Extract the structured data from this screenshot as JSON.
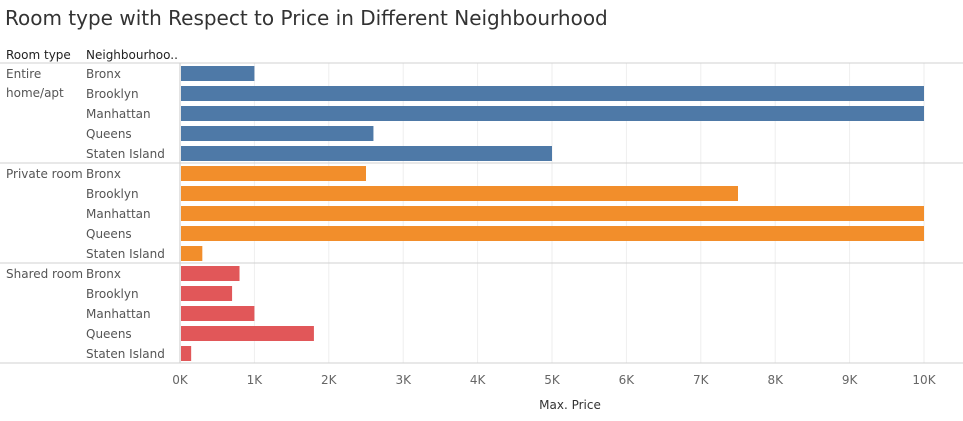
{
  "title": "Room type with Respect to Price in Different Neighbourhood",
  "headers": {
    "room_type": "Room type",
    "neighbourhood": "Neighbourhoo.."
  },
  "chart_data": {
    "type": "bar",
    "orientation": "horizontal",
    "xlabel": "Max. Price",
    "xlim": [
      0,
      10000
    ],
    "x_ticks": [
      0,
      1000,
      2000,
      3000,
      4000,
      5000,
      6000,
      7000,
      8000,
      9000,
      10000
    ],
    "x_tick_labels": [
      "0K",
      "1K",
      "2K",
      "3K",
      "4K",
      "5K",
      "6K",
      "7K",
      "8K",
      "9K",
      "10K"
    ],
    "grid": true,
    "groups": [
      {
        "name": "Entire home/apt",
        "color": "#4e79a7",
        "categories": [
          "Bronx",
          "Brooklyn",
          "Manhattan",
          "Queens",
          "Staten Island"
        ],
        "values": [
          1000,
          10000,
          10000,
          2600,
          5000
        ]
      },
      {
        "name": "Private room",
        "color": "#f28e2b",
        "categories": [
          "Bronx",
          "Brooklyn",
          "Manhattan",
          "Queens",
          "Staten Island"
        ],
        "values": [
          2500,
          7500,
          10000,
          10000,
          300
        ]
      },
      {
        "name": "Shared room",
        "color": "#e15759",
        "categories": [
          "Bronx",
          "Brooklyn",
          "Manhattan",
          "Queens",
          "Staten Island"
        ],
        "values": [
          800,
          700,
          1000,
          1800,
          150
        ]
      }
    ]
  }
}
